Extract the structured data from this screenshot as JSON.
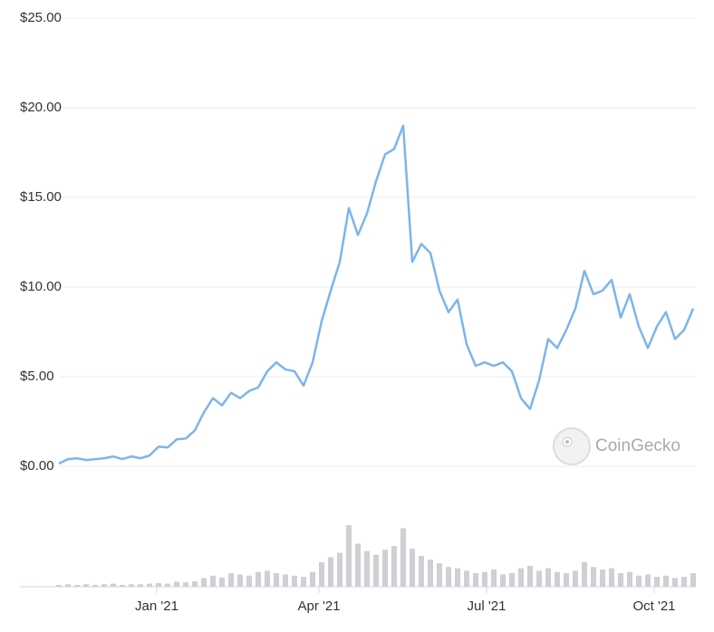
{
  "chart_data": [
    {
      "type": "line",
      "color": "#7cb5ec",
      "grid": true,
      "values": [
        0.15,
        0.4,
        0.45,
        0.35,
        0.4,
        0.45,
        0.55,
        0.4,
        0.55,
        0.45,
        0.6,
        1.1,
        1.05,
        1.5,
        1.55,
        2.0,
        3.0,
        3.8,
        3.4,
        4.1,
        3.8,
        4.2,
        4.4,
        5.3,
        5.8,
        5.4,
        5.3,
        4.5,
        5.8,
        8.1,
        9.8,
        11.4,
        14.4,
        12.9,
        14.1,
        15.9,
        17.4,
        17.7,
        19.0,
        11.4,
        12.4,
        11.9,
        9.8,
        8.6,
        9.3,
        6.8,
        5.6,
        5.8,
        5.6,
        5.8,
        5.3,
        3.8,
        3.2,
        4.8,
        7.1,
        6.6,
        7.6,
        8.8,
        10.9,
        9.6,
        9.8,
        10.4,
        8.3,
        9.6,
        7.8,
        6.6,
        7.8,
        8.6,
        7.1,
        7.6,
        8.8
      ],
      "xlim": [
        0,
        70
      ],
      "xticks": [
        {
          "value": 10.8,
          "label": "Jan '21"
        },
        {
          "value": 28.7,
          "label": "Apr '21"
        },
        {
          "value": 47.2,
          "label": "Jul '21"
        },
        {
          "value": 65.7,
          "label": "Oct '21"
        }
      ],
      "ylim": [
        0,
        25
      ],
      "yticks": [
        {
          "value": 0,
          "label": "$0.00"
        },
        {
          "value": 5,
          "label": "$5.00"
        },
        {
          "value": 10,
          "label": "$10.00"
        },
        {
          "value": 15,
          "label": "$15.00"
        },
        {
          "value": 20,
          "label": "$20.00"
        },
        {
          "value": 25,
          "label": "$25.00"
        }
      ],
      "watermark": "CoinGecko"
    },
    {
      "type": "bar",
      "color": "#cfcfd4",
      "values": [
        3,
        4,
        3,
        4,
        3,
        4,
        5,
        3,
        4,
        4,
        5,
        6,
        5,
        8,
        7,
        9,
        14,
        18,
        15,
        22,
        20,
        18,
        24,
        26,
        22,
        20,
        18,
        16,
        24,
        40,
        48,
        55,
        100,
        70,
        58,
        52,
        60,
        66,
        95,
        62,
        50,
        44,
        38,
        32,
        30,
        26,
        22,
        24,
        28,
        20,
        22,
        30,
        34,
        26,
        30,
        24,
        22,
        26,
        40,
        32,
        28,
        30,
        22,
        24,
        18,
        20,
        16,
        18,
        14,
        16,
        22
      ],
      "xlim": [
        0,
        70
      ],
      "ylim": [
        0,
        100
      ]
    }
  ]
}
